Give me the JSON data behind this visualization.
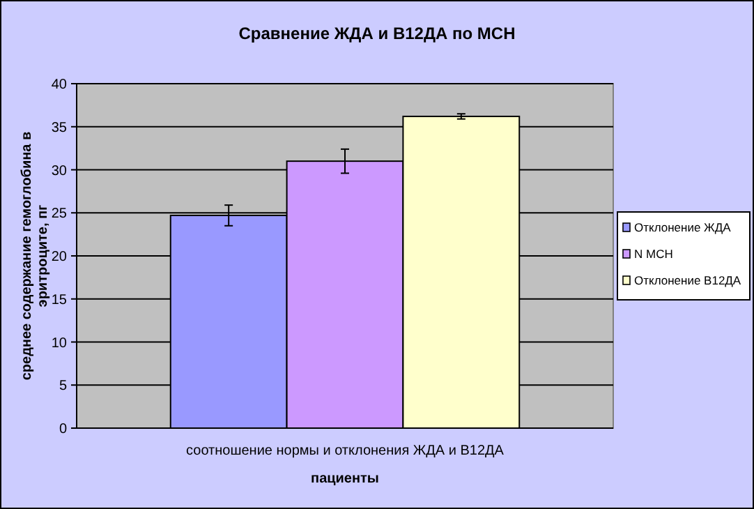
{
  "chart_data": {
    "type": "bar",
    "title": "Сравнение ЖДА и В12ДА по МСН",
    "xlabel": "пациенты",
    "ylabel": "среднее содержание гемоглобина в эритроците, пг",
    "categories": [
      "соотношение нормы и отклонения ЖДА и В12ДА"
    ],
    "series": [
      {
        "name": "Отклонение ЖДА",
        "color": "#9999ff",
        "values": [
          24.7
        ],
        "errors": [
          1.2
        ]
      },
      {
        "name": "N MCH",
        "color": "#cc99ff",
        "values": [
          31.0
        ],
        "errors": [
          1.4
        ]
      },
      {
        "name": "Отклонение В12ДА",
        "color": "#ffffcc",
        "values": [
          36.2
        ],
        "errors": [
          0.3
        ]
      }
    ],
    "ylim": [
      0,
      40
    ],
    "yticks": [
      0,
      5,
      10,
      15,
      20,
      25,
      30,
      35,
      40
    ],
    "grid": "y",
    "legend": "right"
  }
}
